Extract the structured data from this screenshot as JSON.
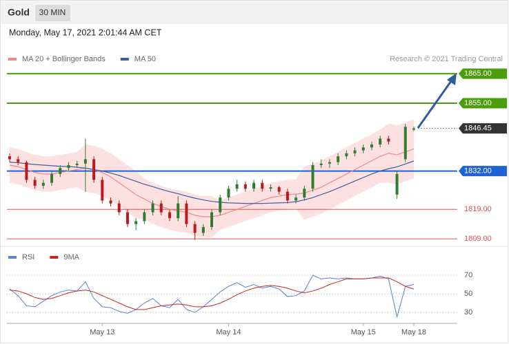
{
  "chart_data": [
    {
      "type": "candlestick",
      "title": "Gold",
      "timeframe": "30 MIN",
      "subtitle": "Monday, May 17, 2021 2:01:44 AM CET",
      "source": "Research © 2021 Trading Central",
      "up_color": "#2e7d32",
      "down_color": "#b71c1c",
      "ylim": [
        1806.7,
        1876
      ],
      "ohlc": [
        [
          1837,
          1838,
          1835,
          1836
        ],
        [
          1836,
          1837,
          1834,
          1835
        ],
        [
          1835,
          1835.5,
          1828,
          1829
        ],
        [
          1829,
          1830,
          1826,
          1827
        ],
        [
          1827,
          1829,
          1826,
          1828
        ],
        [
          1828,
          1832,
          1827,
          1831
        ],
        [
          1831,
          1834,
          1830,
          1833
        ],
        [
          1833,
          1835,
          1832,
          1834
        ],
        [
          1834,
          1835.5,
          1833,
          1834.5
        ],
        [
          1834.5,
          1843,
          1825,
          1836
        ],
        [
          1836,
          1837,
          1828,
          1829
        ],
        [
          1829,
          1830,
          1821,
          1822
        ],
        [
          1822,
          1823,
          1820,
          1821
        ],
        [
          1821,
          1822,
          1817,
          1818
        ],
        [
          1818,
          1819,
          1813,
          1814
        ],
        [
          1814,
          1816,
          1812,
          1815
        ],
        [
          1815,
          1819,
          1814,
          1818
        ],
        [
          1818,
          1822,
          1817,
          1821
        ],
        [
          1821,
          1822,
          1817,
          1818
        ],
        [
          1818,
          1819,
          1815,
          1816
        ],
        [
          1816,
          1823.5,
          1815,
          1821
        ],
        [
          1821,
          1822,
          1813,
          1814
        ],
        [
          1814,
          1815,
          1808.6,
          1811
        ],
        [
          1811,
          1814,
          1810,
          1813
        ],
        [
          1813,
          1819,
          1812,
          1818
        ],
        [
          1818,
          1824,
          1817,
          1823
        ],
        [
          1823,
          1827,
          1822,
          1826
        ],
        [
          1826,
          1829,
          1825,
          1827.5
        ],
        [
          1827.5,
          1828.5,
          1825,
          1826
        ],
        [
          1826,
          1829,
          1825,
          1828
        ],
        [
          1828,
          1829,
          1825,
          1826
        ],
        [
          1826,
          1827.5,
          1825,
          1826.5
        ],
        [
          1826.5,
          1827,
          1824,
          1825
        ],
        [
          1825,
          1826,
          1821,
          1822
        ],
        [
          1822,
          1824,
          1821,
          1823
        ],
        [
          1823,
          1827,
          1822,
          1826
        ],
        [
          1826,
          1835,
          1825,
          1834
        ],
        [
          1834,
          1836,
          1833,
          1834.5
        ],
        [
          1834.5,
          1836,
          1833,
          1835
        ],
        [
          1835,
          1838,
          1834,
          1837
        ],
        [
          1837,
          1839,
          1836,
          1838
        ],
        [
          1838,
          1840,
          1837,
          1839
        ],
        [
          1839,
          1841,
          1838,
          1840
        ],
        [
          1840,
          1842,
          1839,
          1841
        ],
        [
          1841,
          1844,
          1840,
          1843
        ],
        [
          1843,
          1844,
          1841,
          1842
        ],
        [
          1824,
          1832,
          1822.5,
          1831
        ],
        [
          1836,
          1848,
          1835,
          1847
        ],
        [
          1846,
          1847,
          1845.5,
          1846.45
        ]
      ],
      "overlays": [
        {
          "name": "MA 20 + Bollinger Bands",
          "color": "#f08a8a",
          "band_color": "#fde0e0",
          "values": [
            1834,
            1833.5,
            1832.5,
            1831.5,
            1831,
            1831,
            1831.5,
            1832,
            1832.5,
            1833,
            1832.5,
            1831.5,
            1830,
            1828,
            1826,
            1824,
            1822.5,
            1821,
            1820,
            1819,
            1818.5,
            1818,
            1817,
            1816.5,
            1816.5,
            1817,
            1818,
            1819,
            1820,
            1821,
            1822,
            1823,
            1823.5,
            1824,
            1824.2,
            1824.5,
            1825.5,
            1826.5,
            1828,
            1829.5,
            1831,
            1832.5,
            1834,
            1835.5,
            1837,
            1838,
            1837.5,
            1838.5,
            1839.5
          ],
          "upper": [
            1840,
            1839.5,
            1838.5,
            1837.5,
            1837,
            1837,
            1837.5,
            1838,
            1838.5,
            1841,
            1840.5,
            1839.5,
            1838,
            1836,
            1834,
            1832,
            1829.5,
            1828,
            1827,
            1826,
            1825.5,
            1825,
            1824,
            1823.5,
            1823.5,
            1822,
            1823,
            1824,
            1825,
            1826,
            1827,
            1828,
            1828.5,
            1829,
            1829.2,
            1833.5,
            1834.5,
            1835.5,
            1837,
            1838.5,
            1840,
            1841.5,
            1843,
            1844.5,
            1846,
            1848,
            1847.5,
            1848.5,
            1849.5
          ],
          "lower": [
            1828,
            1827.5,
            1826.5,
            1825.5,
            1825,
            1825,
            1825.5,
            1826,
            1826.5,
            1825,
            1824.5,
            1823.5,
            1822,
            1820,
            1818,
            1816,
            1815.5,
            1814,
            1813,
            1812,
            1811.5,
            1811,
            1810,
            1809.5,
            1809.5,
            1812,
            1813,
            1814,
            1815,
            1816,
            1817,
            1818,
            1818.5,
            1819,
            1819.2,
            1815.5,
            1816.5,
            1817.5,
            1819,
            1820.5,
            1822,
            1823.5,
            1825,
            1826.5,
            1828,
            1828,
            1827.5,
            1828.5,
            1829.5
          ]
        },
        {
          "name": "MA 50",
          "color": "#3a5f9f",
          "values": [
            1835,
            1834.8,
            1834.5,
            1834.2,
            1834,
            1833.8,
            1833.6,
            1833.5,
            1833.3,
            1833,
            1832.5,
            1832,
            1831.3,
            1830.5,
            1829.5,
            1828.5,
            1827.5,
            1826.7,
            1825.8,
            1825,
            1824.3,
            1823.5,
            1822.8,
            1822.2,
            1821.7,
            1821.4,
            1821.2,
            1821.1,
            1821,
            1821,
            1821,
            1821.1,
            1821.2,
            1821.3,
            1821.6,
            1822.2,
            1823,
            1824,
            1825,
            1826.2,
            1827.4,
            1828.6,
            1829.8,
            1831,
            1832,
            1832.8,
            1833.4,
            1834.4,
            1835.4
          ]
        }
      ],
      "levels": [
        {
          "value": 1865,
          "label": "1865.00",
          "color": "#4a9e0a",
          "line": "solid",
          "box": true
        },
        {
          "value": 1855,
          "label": "1855.00",
          "color": "#4a9e0a",
          "line": "solid",
          "box": true
        },
        {
          "value": 1846.45,
          "label": "1846.45",
          "color": "#333333",
          "line": "dotted",
          "box": true
        },
        {
          "value": 1832,
          "label": "1832.00",
          "color": "#1e63d6",
          "line": "solid",
          "box": true
        },
        {
          "value": 1819,
          "label": "1819.00",
          "color": "#e05050",
          "line": "solid",
          "box": false
        },
        {
          "value": 1809,
          "label": "1809.00",
          "color": "#e05050",
          "line": "solid",
          "box": false
        }
      ]
    },
    {
      "type": "line",
      "categories": [
        null,
        null,
        null,
        null,
        null,
        null,
        null,
        null,
        null,
        null,
        null,
        "May 13",
        null,
        null,
        null,
        null,
        null,
        null,
        null,
        null,
        null,
        null,
        null,
        null,
        null,
        null,
        "May 14",
        null,
        null,
        null,
        null,
        null,
        null,
        null,
        null,
        null,
        null,
        null,
        null,
        null,
        null,
        null,
        "May 15",
        null,
        null,
        null,
        null,
        null,
        "May 18"
      ],
      "ylim": [
        20,
        98
      ],
      "yticks": [
        30,
        50,
        70
      ],
      "grid": true,
      "series": [
        {
          "name": "RSI",
          "color": "#5b7fd1",
          "values": [
            55,
            48,
            37,
            36,
            42,
            48,
            52,
            54,
            53,
            63,
            45,
            36,
            35,
            31,
            29,
            33,
            40,
            45,
            37,
            35,
            44,
            33,
            30,
            36,
            44,
            52,
            58,
            62,
            57,
            60,
            56,
            58,
            55,
            47,
            48,
            53,
            70,
            66,
            67,
            66,
            67,
            66,
            66,
            67,
            69,
            66,
            25,
            58,
            60
          ]
        },
        {
          "name": "9MA",
          "color": "#cc2222",
          "values": [
            54,
            53,
            50,
            46,
            44,
            45,
            48,
            51,
            53,
            54,
            52,
            48,
            44,
            40,
            36,
            33,
            33,
            35,
            37,
            38,
            39,
            38,
            36,
            36,
            37,
            40,
            44,
            49,
            53,
            56,
            58,
            59,
            58,
            56,
            53,
            51,
            53,
            56,
            60,
            63,
            66,
            66,
            66,
            67,
            67,
            67,
            63,
            58,
            55
          ]
        }
      ]
    }
  ]
}
